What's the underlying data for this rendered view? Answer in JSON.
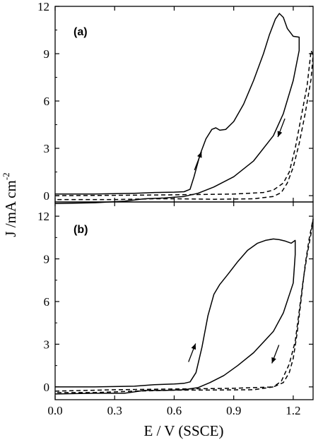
{
  "chart_data": {
    "type": "line",
    "xlabel": "E / V (SSCE)",
    "ylabel_main": "J /mA cm",
    "ylabel_sup": "-2",
    "xlim": [
      0.0,
      1.3
    ],
    "xticks": [
      "0.0",
      "0.3",
      "0.6",
      "0.9",
      "1.2"
    ],
    "xtick_values": [
      0.0,
      0.3,
      0.6,
      0.9,
      1.2
    ],
    "grid": false,
    "panels": [
      {
        "label": "(a)",
        "ylim": [
          -0.4,
          12
        ],
        "yticks": [
          "0",
          "3",
          "6",
          "9",
          "12"
        ],
        "ytick_values": [
          0,
          3,
          6,
          9,
          12
        ],
        "series": [
          {
            "style": "solid",
            "points": [
              [
                0.0,
                0.1
              ],
              [
                0.2,
                0.1
              ],
              [
                0.4,
                0.15
              ],
              [
                0.5,
                0.2
              ],
              [
                0.6,
                0.22
              ],
              [
                0.65,
                0.25
              ],
              [
                0.68,
                0.4
              ],
              [
                0.7,
                1.2
              ],
              [
                0.73,
                2.6
              ],
              [
                0.76,
                3.6
              ],
              [
                0.79,
                4.2
              ],
              [
                0.81,
                4.3
              ],
              [
                0.83,
                4.15
              ],
              [
                0.86,
                4.2
              ],
              [
                0.9,
                4.7
              ],
              [
                0.95,
                5.8
              ],
              [
                1.0,
                7.3
              ],
              [
                1.05,
                9.0
              ],
              [
                1.08,
                10.2
              ],
              [
                1.11,
                11.2
              ],
              [
                1.13,
                11.55
              ],
              [
                1.15,
                11.3
              ],
              [
                1.17,
                10.6
              ],
              [
                1.2,
                10.1
              ],
              [
                1.23,
                10.05
              ],
              [
                1.23,
                9.2
              ],
              [
                1.2,
                7.3
              ],
              [
                1.15,
                5.2
              ],
              [
                1.1,
                3.8
              ],
              [
                1.0,
                2.2
              ],
              [
                0.9,
                1.2
              ],
              [
                0.8,
                0.55
              ],
              [
                0.72,
                0.15
              ],
              [
                0.65,
                -0.05
              ],
              [
                0.55,
                -0.15
              ],
              [
                0.45,
                -0.2
              ],
              [
                0.35,
                -0.35
              ],
              [
                0.2,
                -0.45
              ],
              [
                0.0,
                -0.5
              ]
            ]
          },
          {
            "style": "dashed",
            "points": [
              [
                0.0,
                0.0
              ],
              [
                0.3,
                0.02
              ],
              [
                0.6,
                0.05
              ],
              [
                0.9,
                0.1
              ],
              [
                1.05,
                0.2
              ],
              [
                1.1,
                0.35
              ],
              [
                1.15,
                0.8
              ],
              [
                1.18,
                1.5
              ],
              [
                1.21,
                3.0
              ],
              [
                1.24,
                5.0
              ],
              [
                1.27,
                7.0
              ],
              [
                1.29,
                9.2
              ],
              [
                1.3,
                8.9
              ],
              [
                1.29,
                7.4
              ],
              [
                1.26,
                5.2
              ],
              [
                1.23,
                3.3
              ],
              [
                1.2,
                1.8
              ],
              [
                1.17,
                0.8
              ],
              [
                1.14,
                0.2
              ],
              [
                1.1,
                -0.05
              ],
              [
                1.0,
                -0.2
              ],
              [
                0.8,
                -0.23
              ],
              [
                0.6,
                -0.2
              ],
              [
                0.5,
                -0.2
              ],
              [
                0.3,
                -0.25
              ],
              [
                0.0,
                -0.25
              ]
            ]
          }
        ],
        "arrows": [
          {
            "direction": "up",
            "x": 0.72,
            "y": 2.2
          },
          {
            "direction": "down",
            "x": 1.14,
            "y": 4.3
          }
        ]
      },
      {
        "label": "(b)",
        "ylim": [
          -0.9,
          13
        ],
        "yticks": [
          "0",
          "3",
          "6",
          "9",
          "12"
        ],
        "ytick_values": [
          0,
          3,
          6,
          9,
          12
        ],
        "series": [
          {
            "style": "solid",
            "points": [
              [
                0.0,
                0.0
              ],
              [
                0.2,
                0.0
              ],
              [
                0.4,
                0.05
              ],
              [
                0.5,
                0.15
              ],
              [
                0.6,
                0.2
              ],
              [
                0.65,
                0.25
              ],
              [
                0.68,
                0.35
              ],
              [
                0.71,
                1.0
              ],
              [
                0.74,
                2.8
              ],
              [
                0.77,
                5.0
              ],
              [
                0.8,
                6.5
              ],
              [
                0.83,
                7.2
              ],
              [
                0.87,
                7.9
              ],
              [
                0.92,
                8.8
              ],
              [
                0.97,
                9.6
              ],
              [
                1.02,
                10.1
              ],
              [
                1.06,
                10.3
              ],
              [
                1.1,
                10.4
              ],
              [
                1.13,
                10.35
              ],
              [
                1.16,
                10.25
              ],
              [
                1.19,
                10.1
              ],
              [
                1.21,
                10.3
              ],
              [
                1.21,
                9.3
              ],
              [
                1.2,
                7.3
              ],
              [
                1.15,
                5.2
              ],
              [
                1.1,
                3.9
              ],
              [
                1.0,
                2.4
              ],
              [
                0.92,
                1.5
              ],
              [
                0.85,
                0.8
              ],
              [
                0.78,
                0.3
              ],
              [
                0.72,
                -0.05
              ],
              [
                0.65,
                -0.2
              ],
              [
                0.55,
                -0.25
              ],
              [
                0.45,
                -0.25
              ],
              [
                0.35,
                -0.45
              ],
              [
                0.2,
                -0.45
              ],
              [
                0.0,
                -0.5
              ]
            ]
          },
          {
            "style": "dashed",
            "points": [
              [
                0.0,
                -0.3
              ],
              [
                0.3,
                -0.2
              ],
              [
                0.6,
                -0.15
              ],
              [
                0.9,
                -0.1
              ],
              [
                1.1,
                0.0
              ],
              [
                1.15,
                0.3
              ],
              [
                1.18,
                1.0
              ],
              [
                1.2,
                2.0
              ],
              [
                1.22,
                3.8
              ],
              [
                1.24,
                6.2
              ],
              [
                1.26,
                8.6
              ],
              [
                1.28,
                10.4
              ],
              [
                1.3,
                11.8
              ],
              [
                1.29,
                10.8
              ],
              [
                1.27,
                9.3
              ],
              [
                1.25,
                7.5
              ],
              [
                1.23,
                5.3
              ],
              [
                1.21,
                3.2
              ],
              [
                1.18,
                1.6
              ],
              [
                1.14,
                0.4
              ],
              [
                1.1,
                0.0
              ],
              [
                1.0,
                -0.2
              ],
              [
                0.8,
                -0.22
              ],
              [
                0.6,
                -0.23
              ],
              [
                0.4,
                -0.3
              ],
              [
                0.2,
                -0.4
              ],
              [
                0.0,
                -0.4
              ]
            ]
          }
        ],
        "arrows": [
          {
            "direction": "up",
            "x": 0.69,
            "y": 2.4
          },
          {
            "direction": "down",
            "x": 1.11,
            "y": 2.3
          }
        ]
      }
    ]
  }
}
